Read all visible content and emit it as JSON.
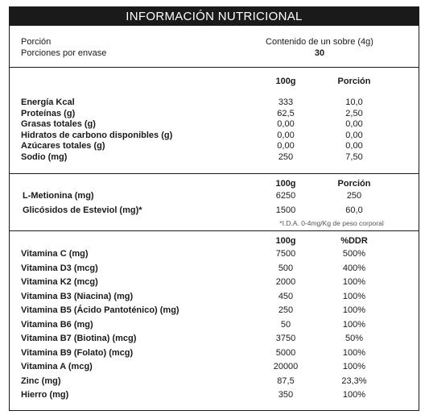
{
  "title": "INFORMACIÓN NUTRICIONAL",
  "serving": {
    "portion_label": "Porción",
    "portion_value": "Contenido de un sobre (4g)",
    "per_pack_label": "Porciones por envase",
    "per_pack_value": "30"
  },
  "section1": {
    "col1": "100g",
    "col2": "Porción",
    "rows": [
      {
        "label": "Energía Kcal",
        "v100": "333",
        "vp": "10,0"
      },
      {
        "label": "Proteínas (g)",
        "v100": "62,5",
        "vp": "2,50"
      },
      {
        "label": "Grasas totales (g)",
        "v100": "0,00",
        "vp": "0,00"
      },
      {
        "label": "Hidratos de carbono disponibles (g)",
        "v100": "0,00",
        "vp": "0,00"
      },
      {
        "label": "Azúcares totales (g)",
        "v100": "0,00",
        "vp": "0,00"
      },
      {
        "label": "Sodio (mg)",
        "v100": "250",
        "vp": "7,50"
      }
    ]
  },
  "section2": {
    "col1": "100g",
    "col2": "Porción",
    "rows": [
      {
        "label": "L-Metionina (mg)",
        "v100": "6250",
        "vp": "250"
      },
      {
        "label": "Glicósidos de Esteviol (mg)*",
        "v100": "1500",
        "vp": "60,0"
      }
    ],
    "footnote": "*I.D.A. 0-4mg/Kg de peso corporal"
  },
  "section3": {
    "col1": "100g",
    "col2": "%DDR",
    "rows": [
      {
        "label": "Vitamina C (mg)",
        "v100": "7500",
        "vp": "500%"
      },
      {
        "label": "Vitamina D3 (mcg)",
        "v100": "500",
        "vp": "400%"
      },
      {
        "label": "Vitamina K2 (mcg)",
        "v100": "2000",
        "vp": "100%"
      },
      {
        "label": "Vitamina B3 (Niacina) (mg)",
        "v100": "450",
        "vp": "100%"
      },
      {
        "label": "Vitamina B5 (Ácido Pantoténico) (mg)",
        "v100": "250",
        "vp": "100%"
      },
      {
        "label": "Vitamina B6 (mg)",
        "v100": "50",
        "vp": "100%"
      },
      {
        "label": "Vitamina B7 (Biotina) (mcg)",
        "v100": "3750",
        "vp": "50%"
      },
      {
        "label": "Vitamina B9 (Folato) (mcg)",
        "v100": "5000",
        "vp": "100%"
      },
      {
        "label": "Vitamina A (mcg)",
        "v100": "20000",
        "vp": "100%"
      },
      {
        "label": "Zinc (mg)",
        "v100": "87,5",
        "vp": "23,3%"
      },
      {
        "label": "Hierro (mg)",
        "v100": "350",
        "vp": "100%"
      }
    ]
  }
}
